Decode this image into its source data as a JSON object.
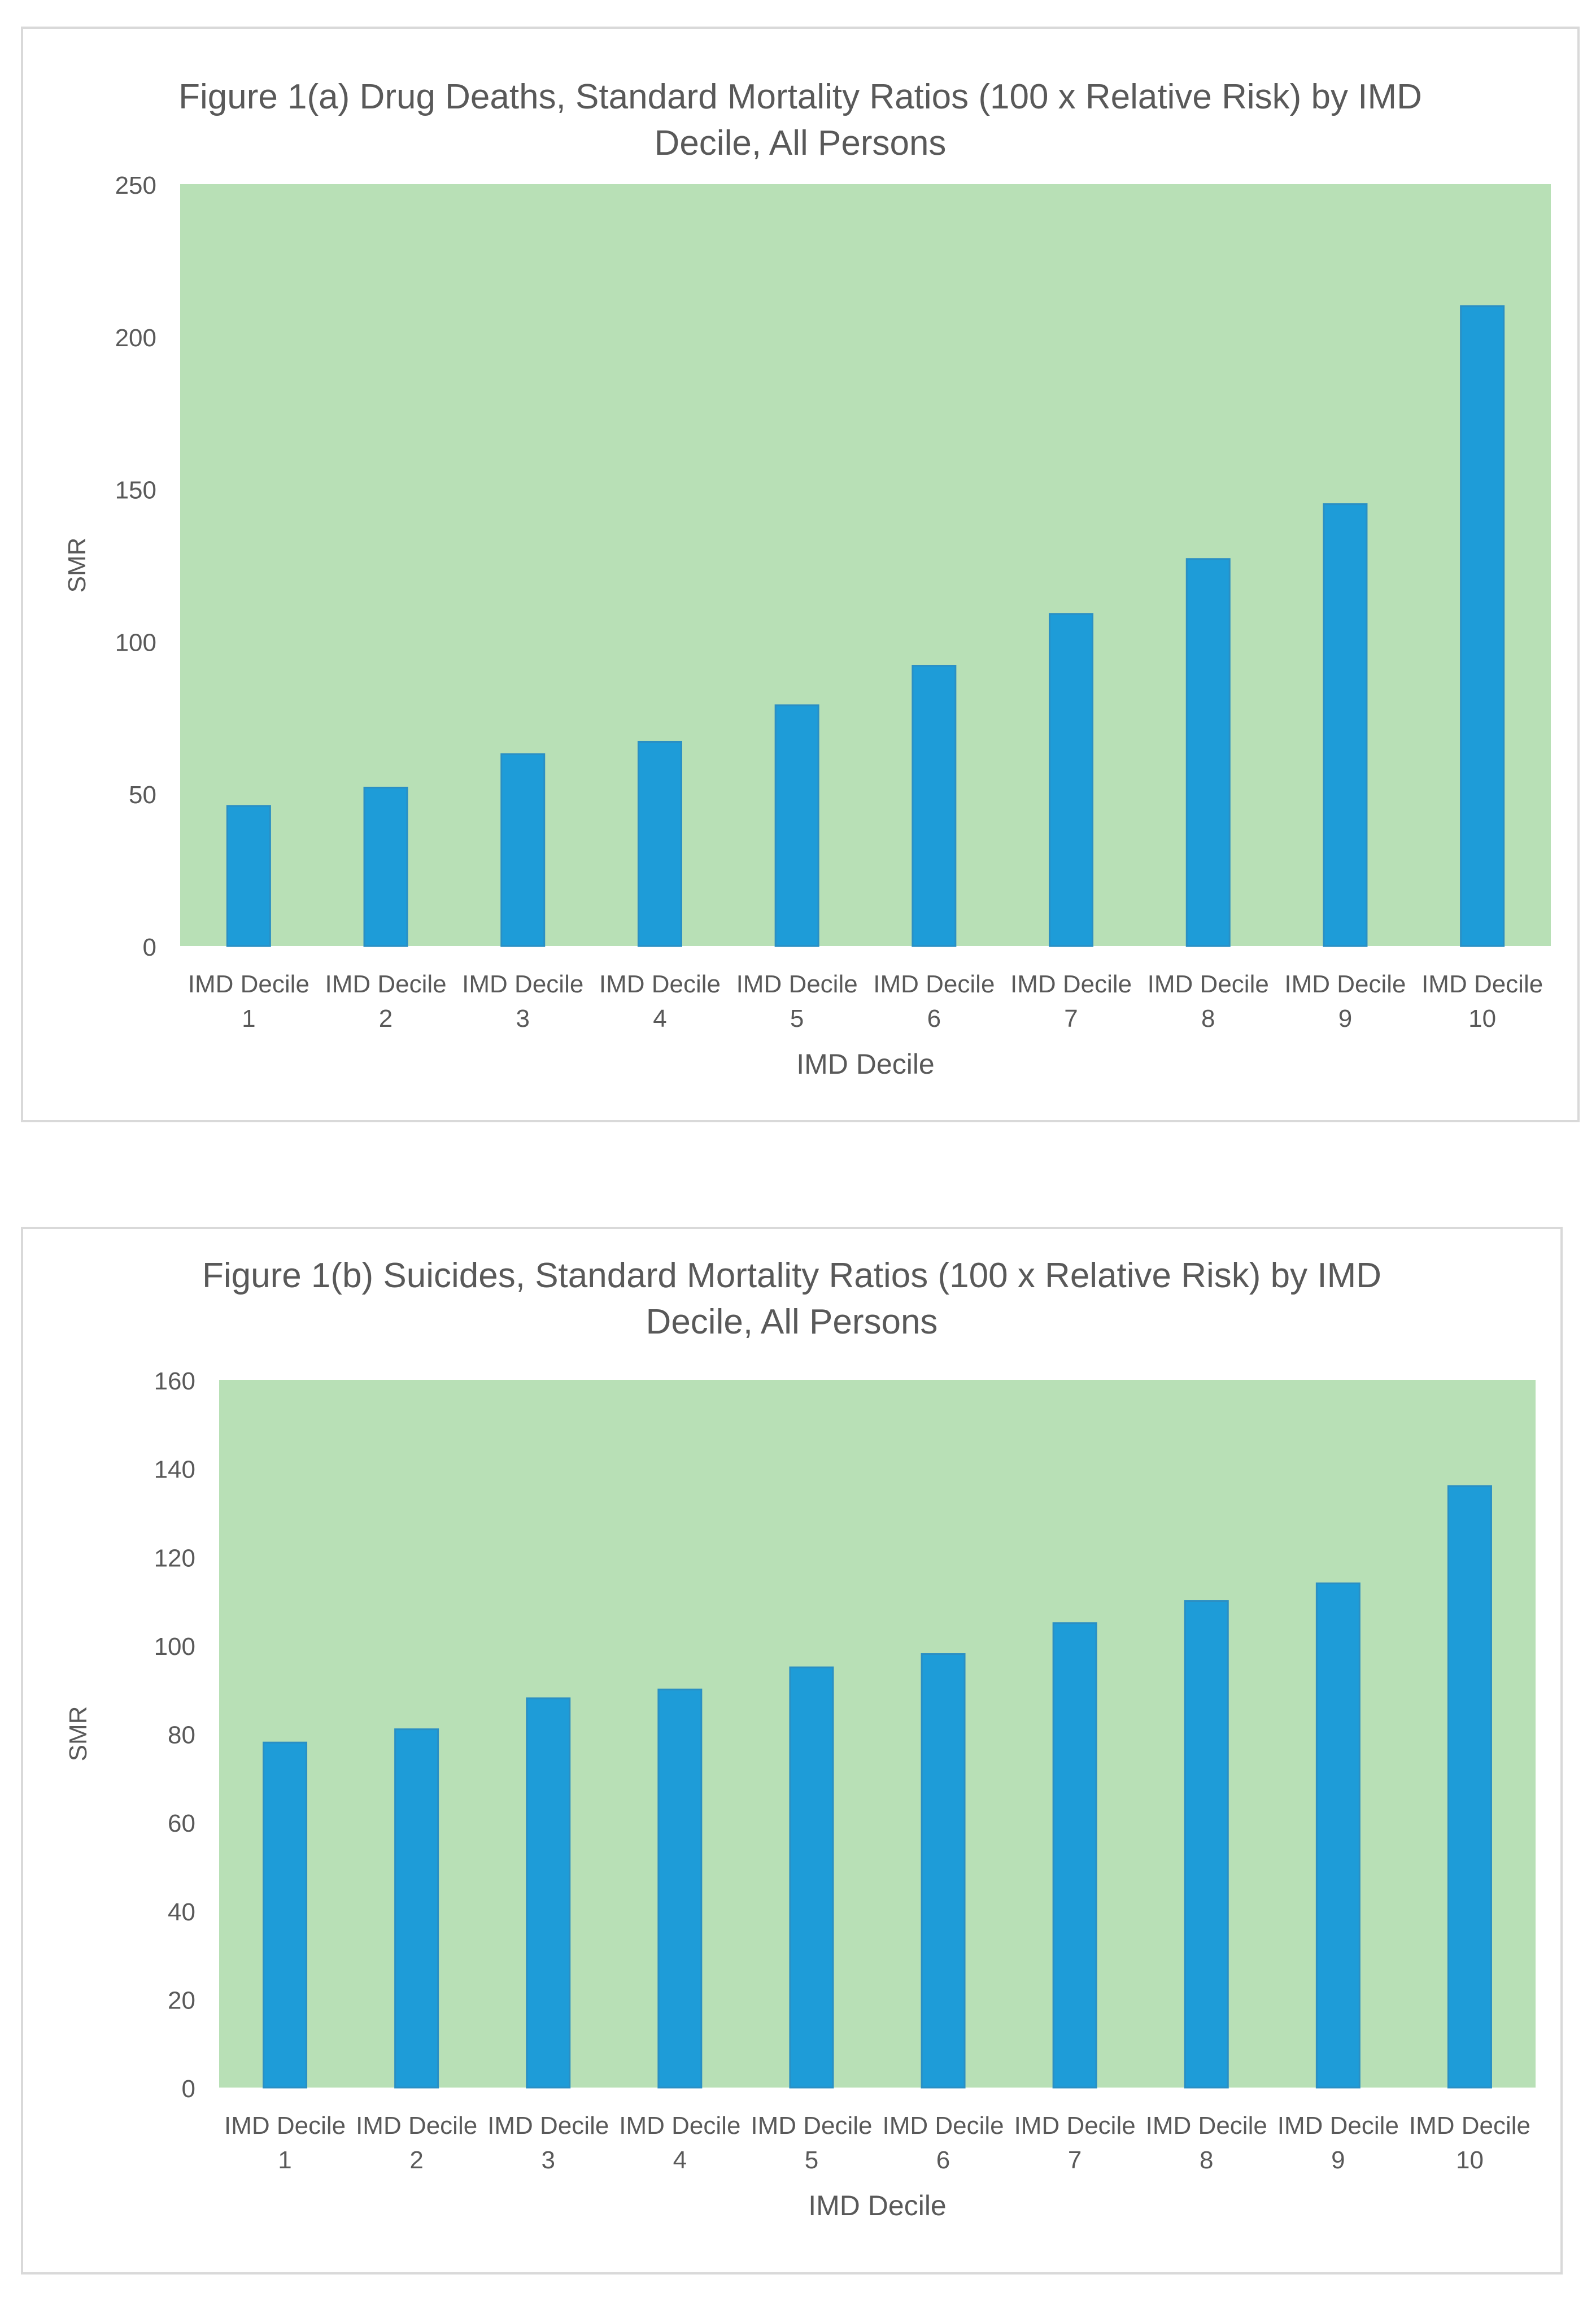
{
  "chart_data": [
    {
      "type": "bar",
      "title_line1": "Figure 1(a) Drug Deaths, Standard Mortality Ratios (100 x Relative Risk) by IMD",
      "title_line2": "Decile, All Persons",
      "xlabel": "IMD Decile",
      "ylabel": "SMR",
      "categories": [
        [
          "IMD Decile",
          "1"
        ],
        [
          "IMD Decile",
          "2"
        ],
        [
          "IMD Decile",
          "3"
        ],
        [
          "IMD Decile",
          "4"
        ],
        [
          "IMD Decile",
          "5"
        ],
        [
          "IMD Decile",
          "6"
        ],
        [
          "IMD Decile",
          "7"
        ],
        [
          "IMD Decile",
          "8"
        ],
        [
          "IMD Decile",
          "9"
        ],
        [
          "IMD Decile",
          "10"
        ]
      ],
      "values": [
        46,
        52,
        63,
        67,
        79,
        92,
        109,
        127,
        145,
        210
      ],
      "ylim": [
        0,
        250
      ],
      "yticks": [
        0,
        50,
        100,
        150,
        200,
        250
      ],
      "grid": false,
      "plot_background": "#b8e0b6",
      "bar_color": "#1e9cd8"
    },
    {
      "type": "bar",
      "title_line1": "Figure 1(b) Suicides, Standard Mortality Ratios (100 x Relative Risk) by IMD",
      "title_line2": "Decile, All Persons",
      "xlabel": "IMD Decile",
      "ylabel": "SMR",
      "categories": [
        [
          "IMD Decile",
          "1"
        ],
        [
          "IMD Decile",
          "2"
        ],
        [
          "IMD Decile",
          "3"
        ],
        [
          "IMD Decile",
          "4"
        ],
        [
          "IMD Decile",
          "5"
        ],
        [
          "IMD Decile",
          "6"
        ],
        [
          "IMD Decile",
          "7"
        ],
        [
          "IMD Decile",
          "8"
        ],
        [
          "IMD Decile",
          "9"
        ],
        [
          "IMD Decile",
          "10"
        ]
      ],
      "values": [
        78,
        81,
        88,
        90,
        95,
        98,
        105,
        110,
        114,
        136
      ],
      "ylim": [
        0,
        160
      ],
      "yticks": [
        0,
        20,
        40,
        60,
        80,
        100,
        120,
        140,
        160
      ],
      "grid": false,
      "plot_background": "#b8e0b6",
      "bar_color": "#1e9cd8"
    }
  ]
}
